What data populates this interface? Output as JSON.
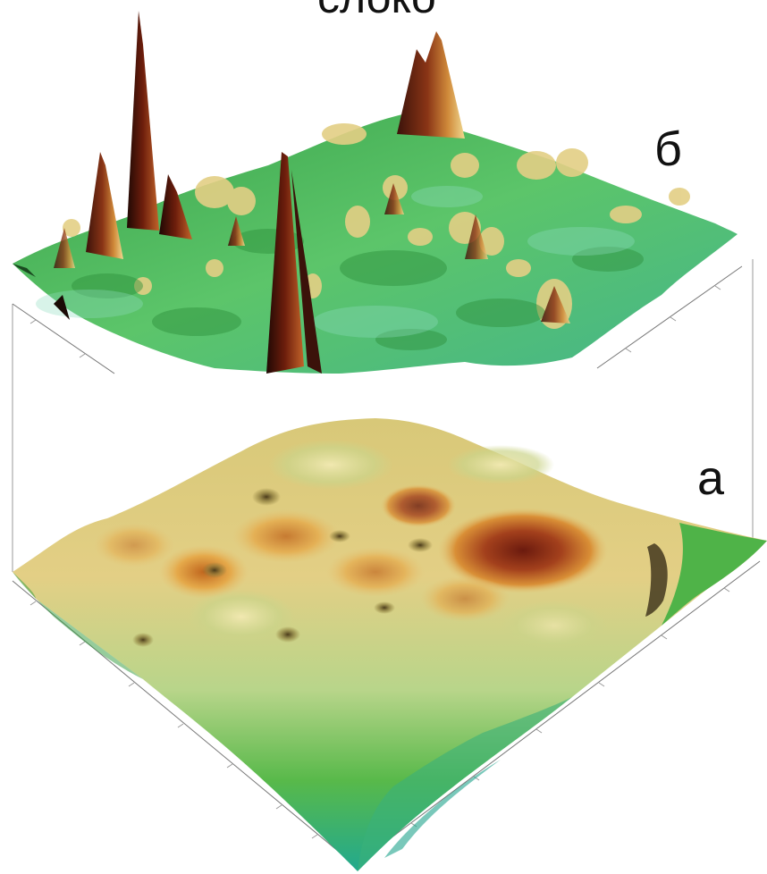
{
  "top_text": "слоко",
  "surface_b_label": "б",
  "surface_a_label": "а",
  "colors": {
    "background": "#ffffff",
    "low": "#2fb89a",
    "mid_green": "#6cc24a",
    "pale": "#e8dfa0",
    "yellow": "#e0b84a",
    "orange": "#c77a2a",
    "peak": "#6b1a0e",
    "axis": "#888888"
  }
}
